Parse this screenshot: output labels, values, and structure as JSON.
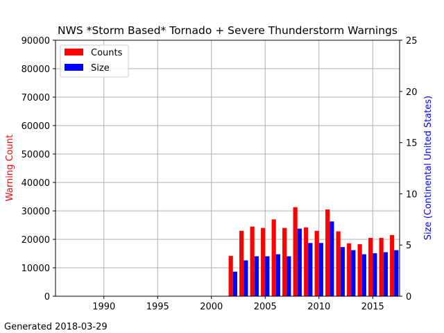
{
  "chart_data": {
    "type": "bar",
    "title": "NWS *Storm Based* Tornado + Severe Thunderstorm Warnings",
    "ylabel": "Warning Count",
    "y2label": "Size (Continental United States)",
    "xlim": [
      1985.5,
      2017.5
    ],
    "ylim": [
      0,
      90000
    ],
    "y2lim": [
      0,
      25
    ],
    "xticks": [
      1990,
      1995,
      2000,
      2005,
      2010,
      2015
    ],
    "yticks": [
      0,
      10000,
      20000,
      30000,
      40000,
      50000,
      60000,
      70000,
      80000,
      90000
    ],
    "y2ticks": [
      0,
      5,
      10,
      15,
      20,
      25
    ],
    "grid": true,
    "legend_position": "upper-left",
    "years": [
      2002,
      2003,
      2004,
      2005,
      2006,
      2007,
      2008,
      2009,
      2010,
      2011,
      2012,
      2013,
      2014,
      2015,
      2016,
      2017
    ],
    "series": [
      {
        "name": "Counts",
        "color": "#ff0000",
        "axis": "left",
        "values": [
          14200,
          23000,
          24500,
          24000,
          27000,
          24000,
          31300,
          24200,
          23000,
          30500,
          22800,
          18600,
          18300,
          20500,
          20500,
          21500
        ]
      },
      {
        "name": "Size",
        "color": "#0000ff",
        "axis": "right",
        "values": [
          2.4,
          3.5,
          3.9,
          3.9,
          4.1,
          3.9,
          6.6,
          5.2,
          5.2,
          7.3,
          4.8,
          4.5,
          4.1,
          4.2,
          4.3,
          4.5
        ]
      }
    ]
  },
  "footer": "Generated 2018-03-29",
  "colors": {
    "left_axis_label": "#ff0000",
    "right_axis_label": "#0000ff",
    "grid": "#b0b0b0"
  }
}
